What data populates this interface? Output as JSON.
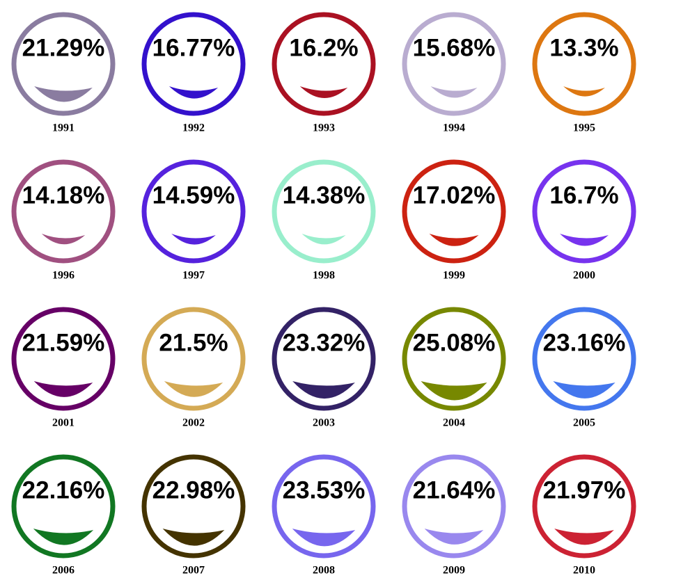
{
  "chart_data": {
    "type": "smiley",
    "categories": [
      "1991",
      "1992",
      "1993",
      "1994",
      "1995",
      "1996",
      "1997",
      "1998",
      "1999",
      "2000",
      "2001",
      "2002",
      "2003",
      "2004",
      "2005",
      "2006",
      "2007",
      "2008",
      "2009",
      "2010"
    ],
    "values": [
      21.29,
      16.77,
      16.2,
      15.68,
      13.3,
      14.18,
      14.59,
      14.38,
      17.02,
      16.7,
      21.59,
      21.5,
      23.32,
      25.08,
      23.16,
      22.16,
      22.98,
      23.53,
      21.64,
      21.97
    ],
    "value_labels": [
      "21.29%",
      "16.77%",
      "16.2%",
      "15.68%",
      "13.3%",
      "14.18%",
      "14.59%",
      "14.38%",
      "17.02%",
      "16.7%",
      "21.59%",
      "21.5%",
      "23.32%",
      "25.08%",
      "23.16%",
      "22.16%",
      "22.98%",
      "23.53%",
      "21.64%",
      "21.97%"
    ],
    "colors": [
      "#8a7ca0",
      "#3311cc",
      "#aa1122",
      "#b9acd0",
      "#dd7711",
      "#a05080",
      "#5522dd",
      "#99eecc",
      "#cc2211",
      "#7733ee",
      "#660066",
      "#d4aa55",
      "#332266",
      "#778800",
      "#4477ee",
      "#117722",
      "#443300",
      "#7766ee",
      "#9988ee",
      "#cc2233"
    ]
  }
}
